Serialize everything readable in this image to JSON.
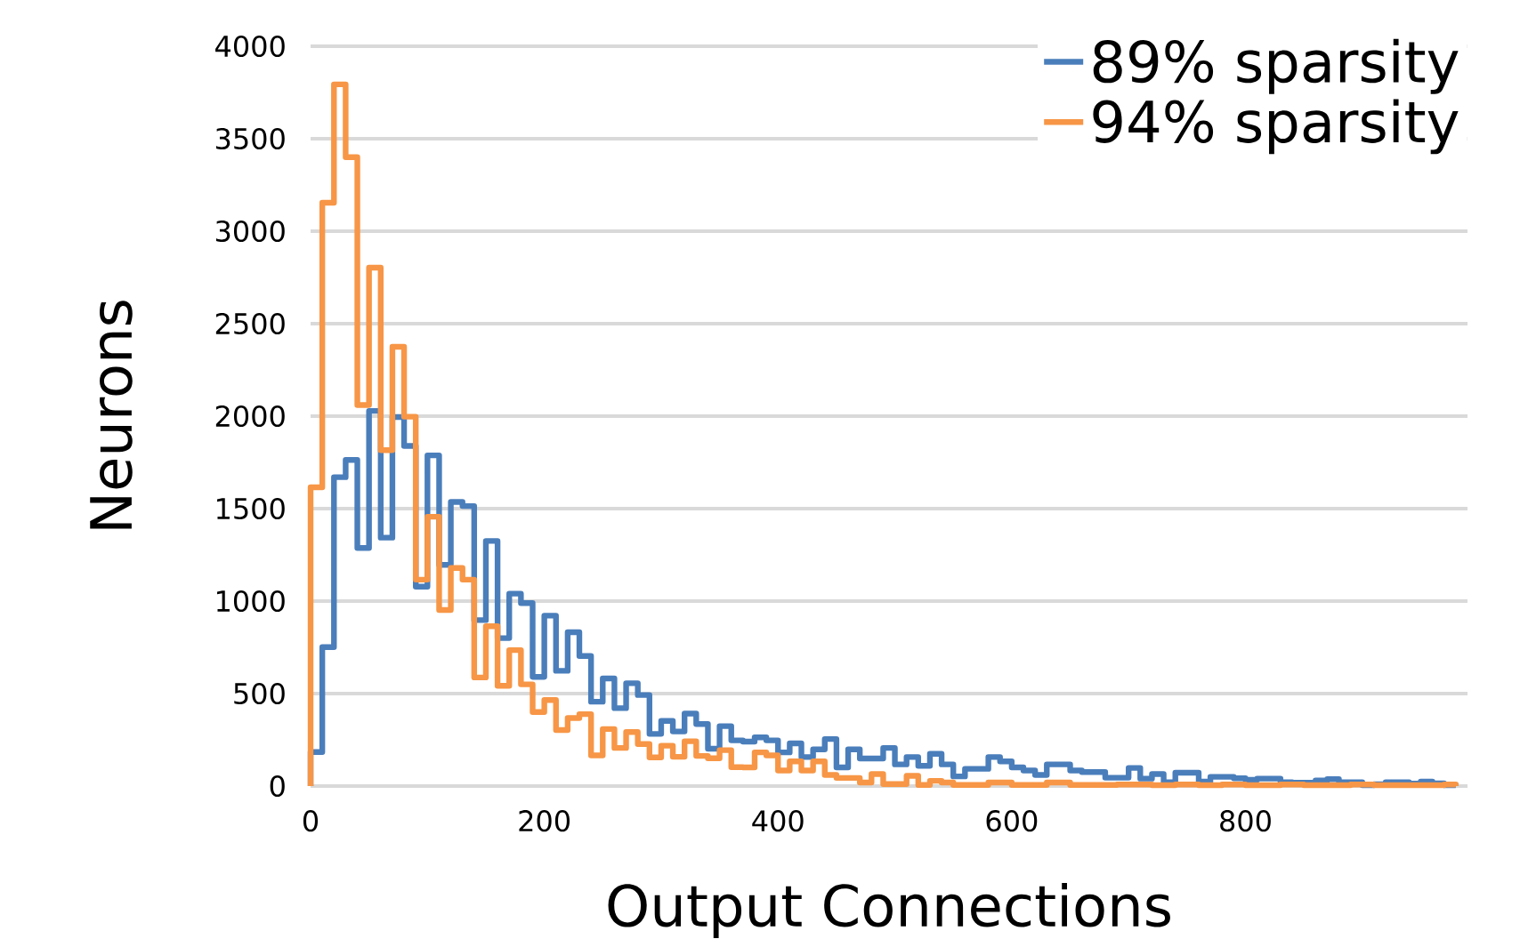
{
  "chart_data": {
    "type": "histogram",
    "xlabel": "Output Connections",
    "ylabel": "Neurons",
    "bins": [
      0,
      10,
      20,
      30,
      40,
      50,
      60,
      70,
      80,
      90,
      100,
      110,
      120,
      130,
      140,
      150,
      160,
      170,
      180,
      190,
      200,
      210,
      220,
      230,
      240,
      250,
      260,
      270,
      280,
      290,
      300,
      310,
      320,
      330,
      340,
      350,
      360,
      370,
      380,
      390,
      400,
      410,
      420,
      430,
      440,
      450,
      460,
      470,
      480,
      490,
      500,
      510,
      520,
      530,
      540,
      550,
      560,
      570,
      580,
      590,
      600,
      610,
      620,
      630,
      640,
      650,
      660,
      670,
      680,
      690,
      700,
      710,
      720,
      730,
      740,
      750,
      760,
      770,
      780,
      790,
      800,
      810,
      820,
      830,
      840,
      850,
      860,
      870,
      880,
      890,
      900,
      910,
      920,
      930,
      940,
      950,
      960,
      970,
      980
    ],
    "series": [
      {
        "name": "89% sparsity",
        "color": "#4a7ebb",
        "values": [
          184,
          751,
          1670,
          1763,
          1287,
          2028,
          1343,
          1995,
          1839,
          1078,
          1788,
          1196,
          1536,
          1514,
          897,
          1325,
          800,
          1040,
          989,
          590,
          921,
          623,
          832,
          703,
          456,
          582,
          421,
          556,
          492,
          282,
          352,
          295,
          392,
          335,
          202,
          324,
          247,
          240,
          263,
          247,
          182,
          231,
          157,
          198,
          254,
          101,
          198,
          149,
          149,
          206,
          117,
          157,
          109,
          174,
          117,
          52,
          93,
          93,
          157,
          133,
          101,
          84,
          60,
          117,
          117,
          84,
          76,
          76,
          45,
          45,
          98,
          40,
          65,
          21,
          72,
          72,
          24,
          50,
          50,
          42,
          34,
          40,
          40,
          21,
          18,
          18,
          30,
          37,
          21,
          21,
          5,
          10,
          21,
          21,
          14,
          24,
          15,
          5
        ]
      },
      {
        "name": "94% sparsity",
        "color": "#f79646",
        "values": [
          1615,
          3154,
          3794,
          3400,
          2060,
          2803,
          1816,
          2375,
          1997,
          1116,
          1456,
          952,
          1179,
          1116,
          587,
          864,
          542,
          735,
          550,
          400,
          465,
          303,
          368,
          389,
          166,
          308,
          206,
          292,
          227,
          155,
          218,
          158,
          242,
          163,
          150,
          194,
          102,
          101,
          182,
          166,
          84,
          133,
          84,
          133,
          60,
          44,
          44,
          19,
          65,
          11,
          11,
          55,
          6,
          28,
          19,
          6,
          6,
          6,
          19,
          19,
          6,
          6,
          6,
          19,
          19,
          6,
          6,
          6,
          6,
          8,
          8,
          8,
          5,
          5,
          8,
          8,
          5,
          5,
          8,
          8,
          5,
          5,
          5,
          8,
          8,
          5,
          5,
          5,
          5,
          8,
          8,
          5,
          5,
          5,
          5,
          5,
          5,
          8
        ]
      }
    ],
    "xlim": [
      0,
      990
    ],
    "ylim": [
      0,
      4000
    ],
    "xticks": [
      0,
      200,
      400,
      600,
      800
    ],
    "yticks": [
      0,
      500,
      1000,
      1500,
      2000,
      2500,
      3000,
      3500,
      4000
    ],
    "grid": "y",
    "legend": "top right"
  }
}
